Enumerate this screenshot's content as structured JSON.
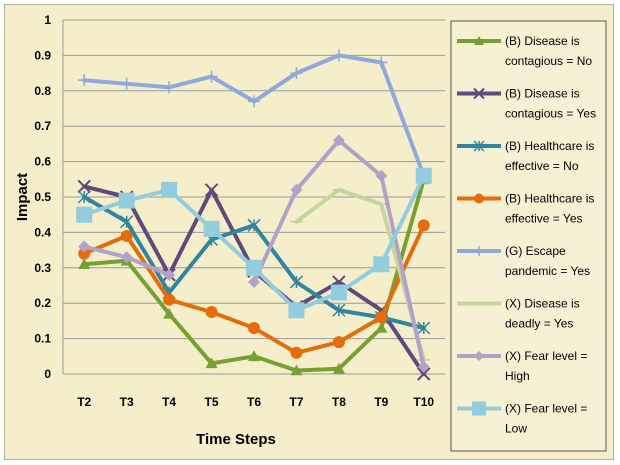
{
  "chart_data": {
    "type": "line",
    "title": "",
    "xlabel": "Time Steps",
    "ylabel": "Impact",
    "ylim": [
      0,
      1
    ],
    "yticks": [
      "0",
      "0.1",
      "0.2",
      "0.3",
      "0.4",
      "0.5",
      "0.6",
      "0.7",
      "0.8",
      "0.9",
      "1"
    ],
    "categories": [
      "T2",
      "T3",
      "T4",
      "T5",
      "T6",
      "T7",
      "T8",
      "T9",
      "T10"
    ],
    "grid": "horizontal",
    "legend_position": "right",
    "series": [
      {
        "name": "(B) Disease is contagious = No",
        "color": "#77a033",
        "marker": "triangle",
        "values": [
          0.31,
          0.32,
          0.17,
          0.03,
          0.05,
          0.01,
          0.015,
          0.13,
          0.55
        ]
      },
      {
        "name": "(B) Disease is contagious = Yes",
        "color": "#604a7b",
        "marker": "x",
        "values": [
          0.53,
          0.5,
          0.28,
          0.52,
          0.29,
          0.19,
          0.26,
          0.18,
          0.0
        ]
      },
      {
        "name": "(B) Healthcare is effective = No",
        "color": "#31859c",
        "marker": "star",
        "values": [
          0.5,
          0.43,
          0.23,
          0.38,
          0.42,
          0.26,
          0.18,
          0.16,
          0.13
        ]
      },
      {
        "name": "(B) Healthcare is effective = Yes",
        "color": "#e46c0a",
        "marker": "circle",
        "values": [
          0.34,
          0.39,
          0.21,
          0.175,
          0.13,
          0.06,
          0.09,
          0.16,
          0.42
        ]
      },
      {
        "name": "(G) Escape pandemic = Yes",
        "color": "#8eaadb",
        "marker": "plus",
        "values": [
          0.83,
          0.82,
          0.81,
          0.84,
          0.77,
          0.85,
          0.9,
          0.88,
          0.56
        ]
      },
      {
        "name": "(X) Disease is deadly = Yes",
        "color": "#c3d69b",
        "marker": "dash",
        "values": [
          null,
          null,
          null,
          null,
          null,
          0.43,
          0.52,
          0.48,
          0.04
        ]
      },
      {
        "name": "(X) Fear level = High",
        "color": "#b3a2c7",
        "marker": "diamond",
        "values": [
          0.36,
          0.33,
          0.28,
          null,
          0.26,
          0.52,
          0.66,
          0.56,
          0.02
        ]
      },
      {
        "name": "(X) Fear level = Low",
        "color": "#93cddd",
        "marker": "square",
        "values": [
          0.45,
          0.49,
          0.52,
          0.41,
          0.3,
          0.18,
          0.23,
          0.31,
          0.56
        ]
      }
    ]
  }
}
